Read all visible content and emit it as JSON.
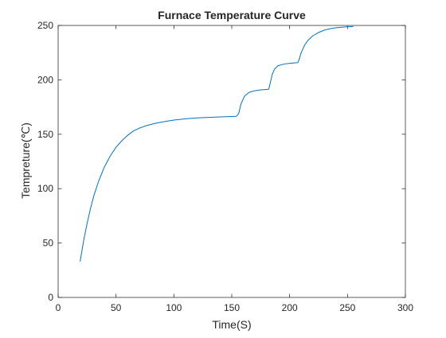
{
  "chart_data": {
    "type": "line",
    "title": "Furnace Temperature Curve",
    "xlabel": "Time(S)",
    "ylabel": "Tempreture(℃)",
    "xlim": [
      0,
      300
    ],
    "ylim": [
      0,
      250
    ],
    "xticks": [
      "0",
      "50",
      "100",
      "150",
      "200",
      "250",
      "300"
    ],
    "yticks": [
      "0",
      "50",
      "100",
      "150",
      "200",
      "250"
    ],
    "grid": false,
    "box": true,
    "series": [
      {
        "color": "#0072bd",
        "x": [
          19,
          22,
          25,
          28,
          31,
          35,
          40,
          45,
          50,
          55,
          60,
          65,
          70,
          75,
          80,
          85,
          90,
          95,
          100,
          110,
          120,
          130,
          140,
          150,
          154,
          156,
          158,
          161,
          165,
          170,
          175,
          180,
          182,
          183,
          185,
          187,
          190,
          195,
          200,
          205,
          207,
          208,
          210,
          213,
          216,
          220,
          225,
          230,
          235,
          240,
          245,
          250,
          255
        ],
        "y": [
          33,
          52,
          68,
          82,
          94,
          107,
          120,
          130,
          138,
          144,
          149,
          153,
          155.5,
          157.5,
          159,
          160.3,
          161.3,
          162.2,
          163,
          164.2,
          165,
          165.5,
          165.9,
          166.3,
          166.5,
          169,
          178,
          185,
          188.5,
          190,
          190.8,
          191.2,
          191.4,
          196,
          205,
          210,
          213,
          214.5,
          215.2,
          215.6,
          215.8,
          218,
          225,
          232,
          236.5,
          240.5,
          243.5,
          245.7,
          247,
          247.9,
          248.4,
          248.8,
          249
        ]
      }
    ]
  }
}
